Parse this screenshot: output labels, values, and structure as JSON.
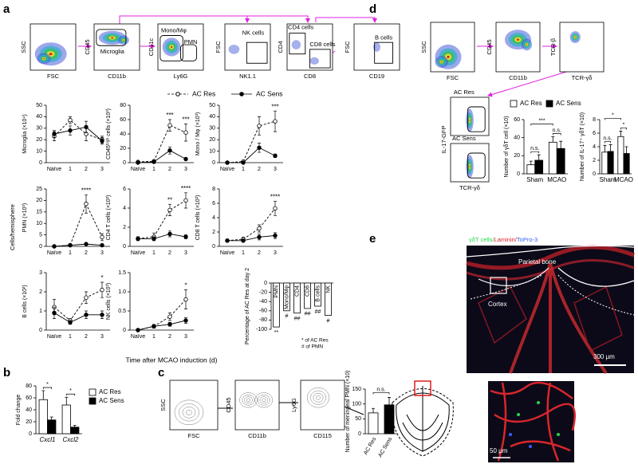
{
  "panel_labels": [
    "a",
    "b",
    "c",
    "d",
    "e"
  ],
  "flow_plots": [
    {
      "ylabel": "SSC",
      "xlabel": "FSC",
      "gates": []
    },
    {
      "ylabel": "CD45",
      "xlabel": "CD11b",
      "gates": [
        "Microglia"
      ]
    },
    {
      "ylabel": "CD11c",
      "xlabel": "Ly6G",
      "gates": [
        "Mono/Mφ",
        "PMN"
      ]
    },
    {
      "ylabel": "FSC",
      "xlabel": "NK1.1",
      "gates": [
        "NK cells"
      ]
    },
    {
      "ylabel": "CD4",
      "xlabel": "CD8",
      "gates": [
        "CD4 cells",
        "CD8 cells"
      ]
    },
    {
      "ylabel": "FSC",
      "xlabel": "CD19",
      "gates": [
        "B cells"
      ]
    },
    {
      "ylabel": "SSC",
      "xlabel": "FSC",
      "gates": []
    },
    {
      "ylabel": "CD45",
      "xlabel": "CD11b",
      "gates": []
    },
    {
      "ylabel": "TCR-β",
      "xlabel": "TCR-γδ",
      "gates": []
    },
    {
      "ylabel": "IL-17-GFP",
      "xlabel": "TCR-γδ",
      "gates": [
        "AC Res",
        "AC Sens"
      ]
    },
    {
      "ylabel": "SSC",
      "xlabel": "FSC",
      "gates": []
    },
    {
      "ylabel": "CD45",
      "xlabel": "CD11b",
      "gates": []
    },
    {
      "ylabel": "Ly6G",
      "xlabel": "CD115",
      "gates": []
    }
  ],
  "chart_data": [
    {
      "type": "line",
      "ylabel": "Cells/hemisphere",
      "xlabel": "Time after MCAO induction (d)",
      "categories": [
        "Naïve",
        "1",
        "2",
        "3"
      ],
      "series": [
        {
          "name": "AC Res",
          "color": "#000000",
          "line_style": "dashed",
          "marker": "open"
        },
        {
          "name": "AC Sens",
          "color": "#000000",
          "line_style": "solid",
          "marker": "filled"
        }
      ],
      "subplots": [
        {
          "ylabel": "Microglia (×10⁴)",
          "ylim": [
            0,
            50
          ],
          "yticks": [
            0,
            10,
            20,
            30,
            40,
            50
          ],
          "series": [
            {
              "values": [
                23,
                37,
                25,
                20
              ],
              "errors": [
                4,
                3,
                6,
                3
              ]
            },
            {
              "values": [
                25,
                28,
                31,
                19
              ],
              "errors": [
                3,
                4,
                5,
                3
              ]
            }
          ],
          "stars": [
            null,
            null,
            null,
            null
          ]
        },
        {
          "ylabel": "CD45ʰⁱᵍʰ cells (×10³)",
          "ylim": [
            0,
            80
          ],
          "yticks": [
            0,
            20,
            40,
            60,
            80
          ],
          "series": [
            {
              "values": [
                1,
                2,
                52,
                42
              ],
              "errors": [
                1,
                1,
                8,
                12
              ]
            },
            {
              "values": [
                0,
                1,
                17,
                5
              ],
              "errors": [
                0.5,
                1,
                5,
                2
              ]
            }
          ],
          "stars": [
            null,
            null,
            "***",
            "***"
          ]
        },
        {
          "ylabel": "Mono / Mφ (×10³)",
          "ylim": [
            0,
            50
          ],
          "yticks": [
            0,
            10,
            20,
            30,
            40,
            50
          ],
          "series": [
            {
              "values": [
                0,
                1,
                32,
                36
              ],
              "errors": [
                0.3,
                0.5,
                8,
                9
              ]
            },
            {
              "values": [
                0,
                0,
                13,
                6
              ],
              "errors": [
                0.2,
                0.3,
                4,
                1.5
              ]
            }
          ],
          "stars": [
            null,
            null,
            null,
            "***"
          ]
        },
        {
          "ylabel": "PMN (×10³)",
          "ylim": [
            0,
            25
          ],
          "yticks": [
            0,
            5,
            10,
            15,
            20,
            25
          ],
          "series": [
            {
              "values": [
                0,
                0.5,
                18.5,
                4
              ],
              "errors": [
                0.2,
                0.3,
                4,
                1.5
              ]
            },
            {
              "values": [
                0,
                0.5,
                1,
                0.5
              ],
              "errors": [
                0.1,
                0.2,
                0.5,
                0.3
              ]
            }
          ],
          "stars": [
            null,
            null,
            "****",
            null
          ]
        },
        {
          "ylabel": "CD4 T cells (×10²)",
          "ylim": [
            0,
            6
          ],
          "yticks": [
            0,
            2,
            4,
            6
          ],
          "series": [
            {
              "values": [
                0.8,
                1,
                3.8,
                4.8
              ],
              "errors": [
                0.2,
                0.4,
                0.6,
                0.8
              ]
            },
            {
              "values": [
                0.8,
                0.8,
                1.3,
                1
              ],
              "errors": [
                0.2,
                0.2,
                0.3,
                0.2
              ]
            }
          ],
          "stars": [
            null,
            null,
            "**",
            "****"
          ]
        },
        {
          "ylabel": "CD8 T cells (×10²)",
          "ylim": [
            0,
            8
          ],
          "yticks": [
            0,
            2,
            4,
            6,
            8
          ],
          "series": [
            {
              "values": [
                0.8,
                1,
                2.5,
                5.3
              ],
              "errors": [
                0.2,
                0.3,
                0.5,
                1
              ]
            },
            {
              "values": [
                0.8,
                0.8,
                1.3,
                1.5
              ],
              "errors": [
                0.2,
                0.2,
                0.4,
                0.4
              ]
            }
          ],
          "stars": [
            null,
            null,
            null,
            "****"
          ]
        },
        {
          "ylabel": "B cells (×10²)",
          "ylim": [
            0,
            3
          ],
          "yticks": [
            0,
            1,
            2,
            3
          ],
          "series": [
            {
              "values": [
                1.2,
                0.5,
                1.7,
                2.1
              ],
              "errors": [
                0.4,
                0.1,
                0.3,
                0.4
              ]
            },
            {
              "values": [
                0.9,
                0.4,
                0.8,
                0.8
              ],
              "errors": [
                0.3,
                0.1,
                0.2,
                0.2
              ]
            }
          ],
          "stars": [
            null,
            null,
            null,
            "*"
          ]
        },
        {
          "ylabel": "NK cells (×10³)",
          "ylim": [
            0,
            1.5
          ],
          "yticks": [
            0,
            0.5,
            {
              "value": 1,
              "label": "1.0"
            },
            1.5
          ],
          "series": [
            {
              "values": [
                0,
                0.1,
                0.35,
                0.8
              ],
              "errors": [
                0.02,
                0.05,
                0.1,
                0.25
              ]
            },
            {
              "values": [
                0,
                0.1,
                0.15,
                0.25
              ],
              "errors": [
                0.02,
                0.04,
                0.05,
                0.07
              ]
            }
          ],
          "stars": [
            null,
            null,
            null,
            "*"
          ]
        }
      ]
    },
    {
      "type": "bar",
      "ylabel": "Percentage of AC Res at day 2",
      "categories": [
        "PMN",
        "Mono/Mφ",
        "CD4",
        "CD8",
        "B cells",
        "NK"
      ],
      "values": [
        -95,
        -60,
        -65,
        -55,
        -50,
        -70
      ],
      "color": "#ffffff",
      "labels_inside": true,
      "annotations": [
        "**",
        "#",
        "##",
        "##",
        "##",
        "#"
      ],
      "notes": [
        "* of AC Res",
        "# of PMN"
      ],
      "ylim": [
        -100,
        0
      ],
      "yticks": [
        0,
        -20,
        -40,
        -60,
        -80,
        -100
      ]
    },
    {
      "type": "bar",
      "ylabel": "Fold change",
      "categories": [
        "Cxcl1",
        "Cxcl2"
      ],
      "italic_categories": true,
      "series": [
        {
          "name": "AC Res",
          "color": "#ffffff",
          "values": [
            57,
            48
          ],
          "errors": [
            15,
            13
          ]
        },
        {
          "name": "AC Sens",
          "color": "#000000",
          "values": [
            23,
            11
          ],
          "errors": [
            5,
            3
          ]
        }
      ],
      "stars": [
        "*",
        "*"
      ],
      "ylim": [
        0,
        80
      ],
      "yticks": [
        0,
        20,
        40,
        60,
        80
      ]
    },
    {
      "type": "bar",
      "ylabel": "Number of meningeal PMN (×10)",
      "categories": [
        "AC Res",
        "AC Sens"
      ],
      "values": [
        70,
        97
      ],
      "errors": [
        15,
        25
      ],
      "colors": [
        "#ffffff",
        "#000000"
      ],
      "xtick_rotation": -60,
      "between": "n.s.",
      "ylim": [
        0,
        150
      ],
      "yticks": [
        0,
        50,
        100,
        150
      ]
    },
    {
      "type": "bar",
      "ylabel": "Number of γδT cell (×10)",
      "categories": [
        "Sham",
        "MCAO"
      ],
      "series": [
        {
          "name": "AC Res",
          "color": "#ffffff",
          "values": [
            10,
            35
          ],
          "errors": [
            4,
            6
          ]
        },
        {
          "name": "AC Sens",
          "color": "#000000",
          "values": [
            15,
            28
          ],
          "errors": [
            6,
            8
          ]
        }
      ],
      "stars": [
        "n.s.",
        "n.s."
      ],
      "between": "***",
      "ylim": [
        0,
        60
      ],
      "yticks": [
        0,
        20,
        40,
        60
      ]
    },
    {
      "type": "bar",
      "ylabel": "Number of IL-17⁺ γδT (×10)",
      "categories": [
        "Sham",
        "MCAO"
      ],
      "series": [
        {
          "color": "#ffffff",
          "values": [
            3.2,
            5.5
          ],
          "errors": [
            1,
            0.8
          ]
        },
        {
          "color": "#000000",
          "values": [
            3.3,
            3.0
          ],
          "errors": [
            1,
            1
          ]
        }
      ],
      "stars": [
        "n.s.",
        "*"
      ],
      "between": "*",
      "ylim": [
        0,
        8
      ],
      "yticks": [
        0,
        2,
        4,
        6,
        8
      ]
    }
  ],
  "micrograph": {
    "legend": [
      "γδT cells/",
      "Laminin/",
      "ToPro-3"
    ],
    "bone": "Parietal bone",
    "region": "Cortex",
    "scale": "300 μm",
    "inset_scale": "50 μm"
  }
}
